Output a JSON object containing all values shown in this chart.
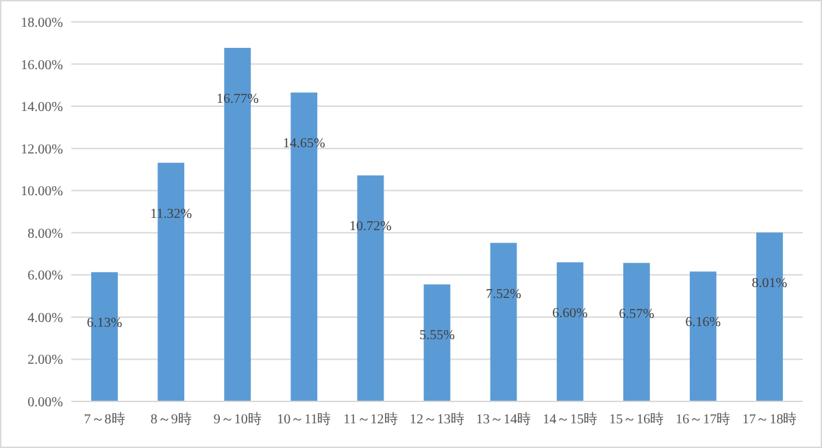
{
  "chart_data": {
    "type": "bar",
    "categories": [
      "7～8時",
      "8～9時",
      "9～10時",
      "10～11時",
      "11～12時",
      "12～13時",
      "13～14時",
      "14～15時",
      "15～16時",
      "16～17時",
      "17～18時"
    ],
    "values": [
      6.13,
      11.32,
      16.77,
      14.65,
      10.72,
      5.55,
      7.52,
      6.6,
      6.57,
      6.16,
      8.01
    ],
    "value_labels": [
      "6.13%",
      "11.32%",
      "16.77%",
      "14.65%",
      "10.72%",
      "5.55%",
      "7.52%",
      "6.60%",
      "6.57%",
      "6.16%",
      "8.01%"
    ],
    "color": "#5b9bd5",
    "ylim": [
      0,
      18
    ],
    "yticks": [
      {
        "value": 0,
        "label": "0.00%"
      },
      {
        "value": 2,
        "label": "2.00%"
      },
      {
        "value": 4,
        "label": "4.00%"
      },
      {
        "value": 6,
        "label": "6.00%"
      },
      {
        "value": 8,
        "label": "8.00%"
      },
      {
        "value": 10,
        "label": "10.00%"
      },
      {
        "value": 12,
        "label": "12.00%"
      },
      {
        "value": 14,
        "label": "14.00%"
      },
      {
        "value": 16,
        "label": "16.00%"
      },
      {
        "value": 18,
        "label": "18.00%"
      }
    ],
    "grid": "y"
  }
}
